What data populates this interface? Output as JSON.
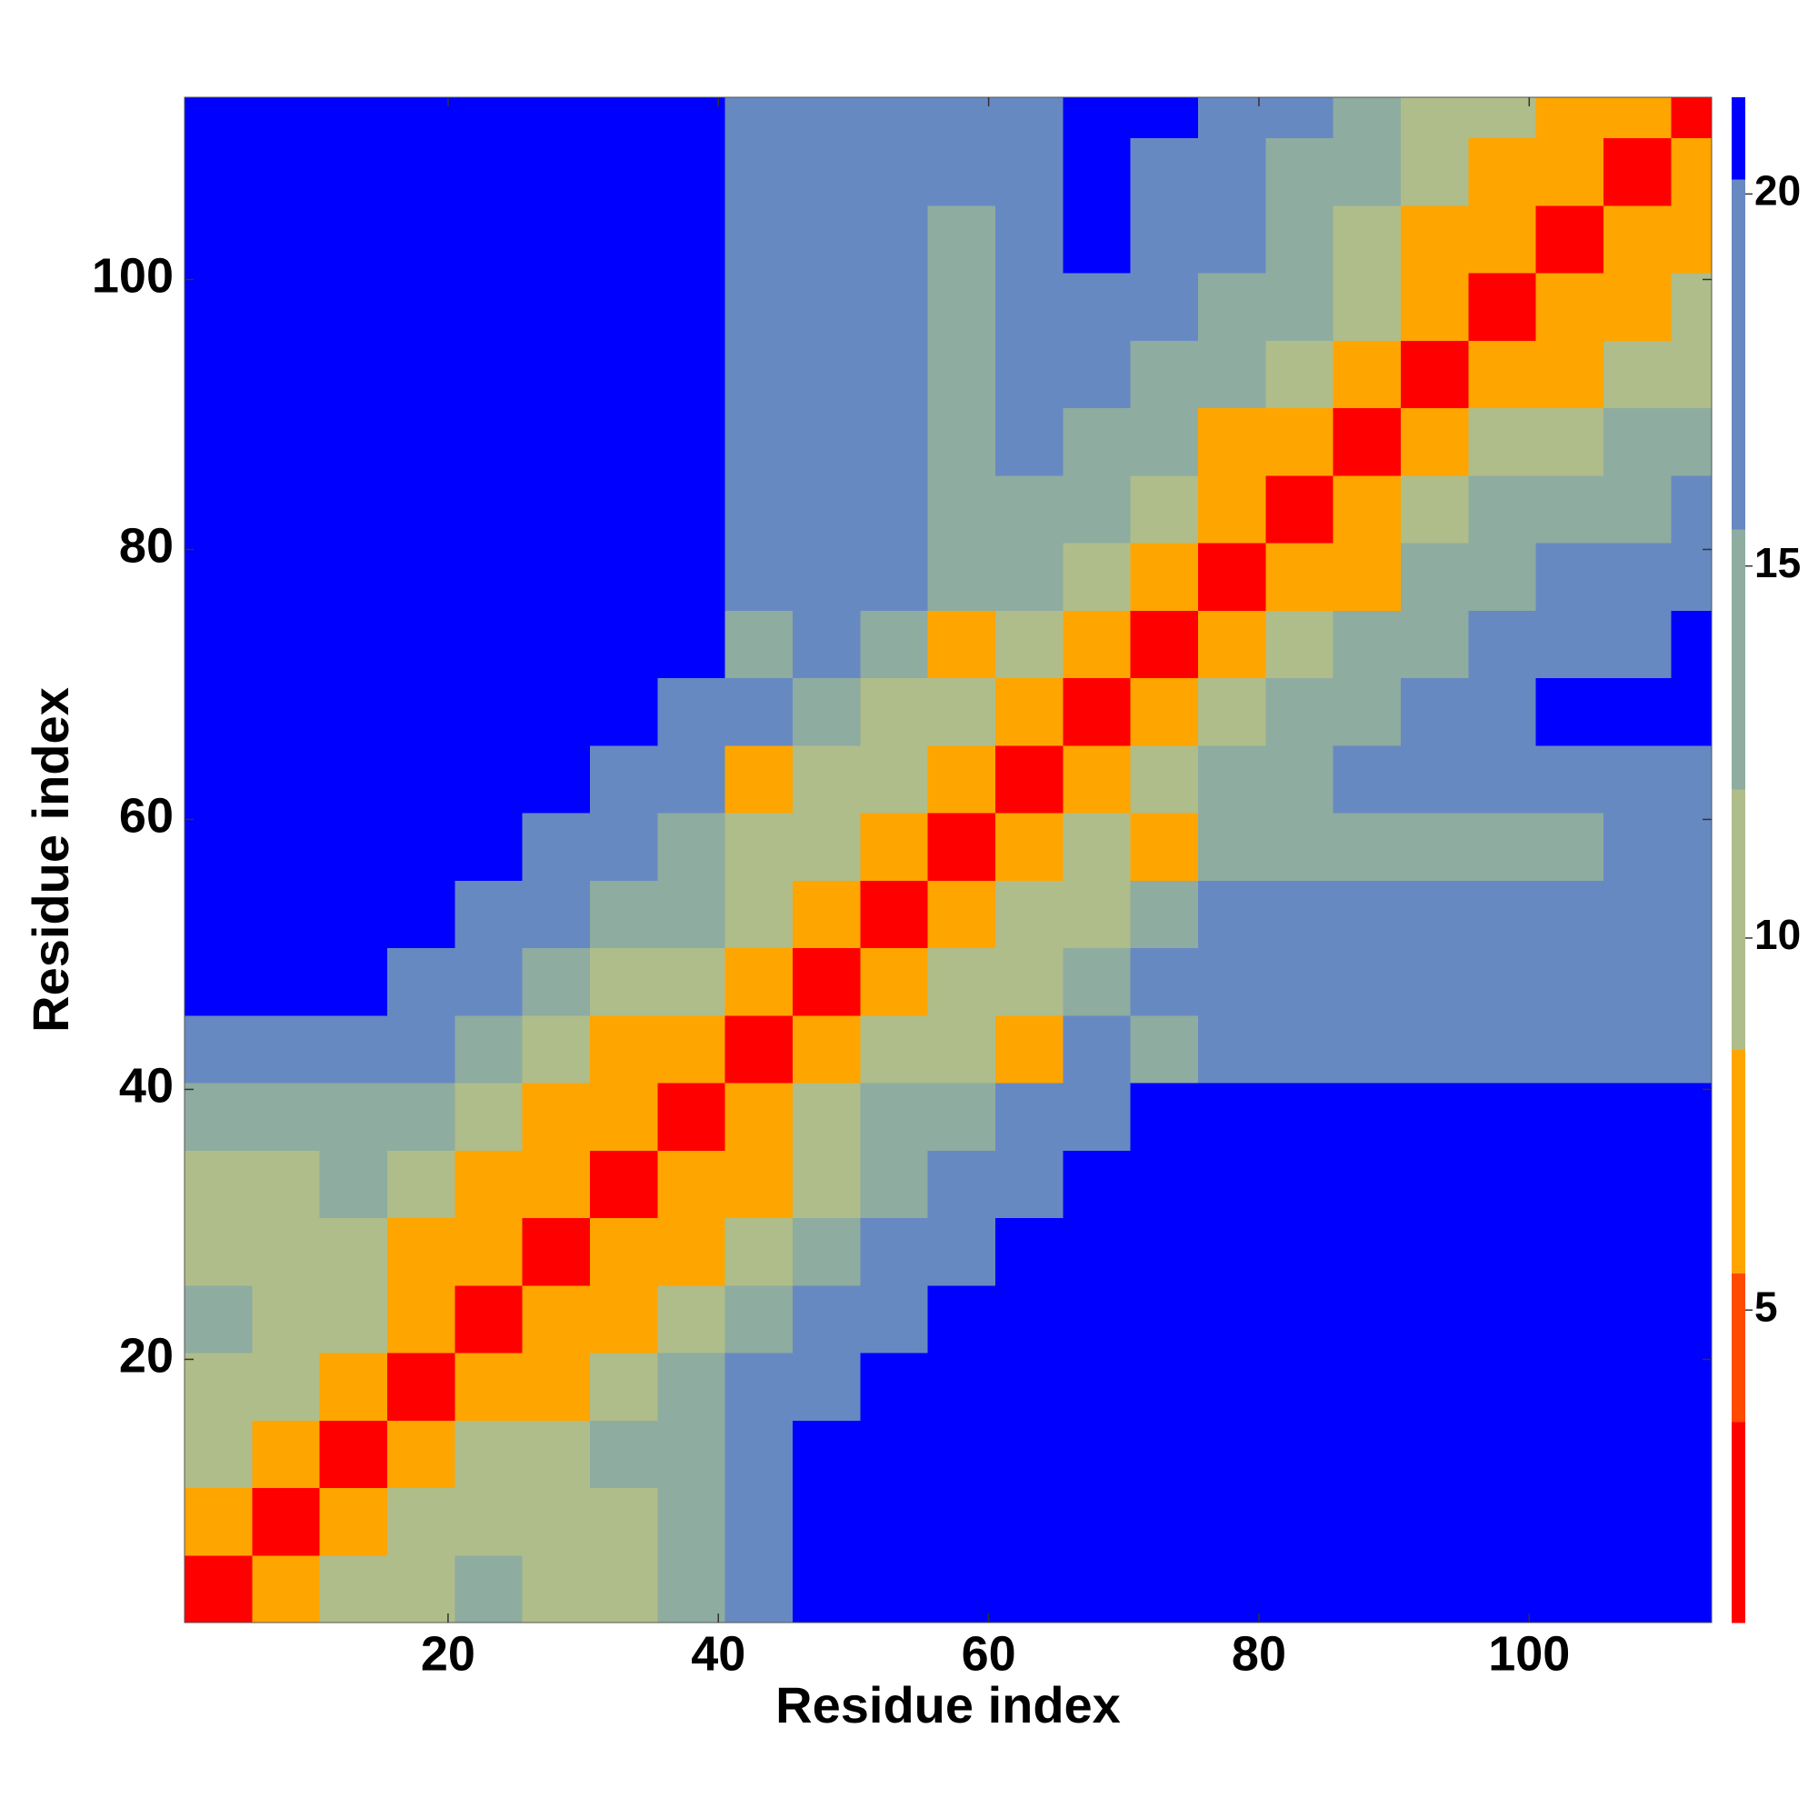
{
  "chart_data": {
    "type": "heatmap",
    "x_label": "Residue index",
    "y_label": "Residue index",
    "xbins": [
      0.5,
      5.5,
      10.5,
      15.5,
      20.5,
      25.5,
      30.5,
      35.5,
      40.5,
      45.5,
      50.5,
      55.5,
      60.5,
      65.5,
      70.5,
      75.5,
      80.5,
      85.5,
      90.5,
      95.5,
      100.5,
      105.5,
      110.5,
      113.5
    ],
    "ybins": [
      0.5,
      5.5,
      10.5,
      15.5,
      20.5,
      25.5,
      30.5,
      35.5,
      40.5,
      45.5,
      50.5,
      55.5,
      60.5,
      65.5,
      70.5,
      75.5,
      80.5,
      85.5,
      90.5,
      95.5,
      100.5,
      105.5,
      110.5,
      113.5
    ],
    "xlim": [
      0.5,
      113.5
    ],
    "ylim": [
      0.5,
      113.5
    ],
    "xticks": [
      20,
      40,
      60,
      80,
      100
    ],
    "yticks": [
      20,
      40,
      60,
      80,
      100
    ],
    "values": [
      [
        3,
        6,
        9,
        11,
        13,
        11,
        11,
        13,
        17,
        21,
        21,
        21,
        21,
        21,
        21,
        21,
        21,
        21,
        21,
        21,
        21,
        21,
        21
      ],
      [
        6,
        3,
        6,
        9,
        11,
        11,
        10,
        13,
        17,
        21,
        21,
        21,
        21,
        21,
        21,
        21,
        21,
        21,
        21,
        21,
        21,
        21,
        21
      ],
      [
        9,
        6,
        3,
        6,
        9,
        11,
        12,
        14,
        17,
        21,
        21,
        21,
        21,
        21,
        21,
        21,
        21,
        21,
        21,
        21,
        21,
        21,
        21
      ],
      [
        11,
        9,
        6,
        3,
        6,
        8,
        10,
        13,
        16,
        19,
        21,
        21,
        21,
        21,
        21,
        21,
        21,
        21,
        21,
        21,
        21,
        21,
        21
      ],
      [
        13,
        11,
        9,
        6,
        3,
        6,
        8,
        11,
        14,
        17,
        20,
        21,
        21,
        21,
        21,
        21,
        21,
        21,
        21,
        21,
        21,
        21,
        21
      ],
      [
        11,
        11,
        11,
        8,
        6,
        3,
        6,
        8,
        11,
        14,
        17,
        20,
        21,
        21,
        21,
        21,
        21,
        21,
        21,
        21,
        21,
        21,
        21
      ],
      [
        11,
        10,
        12,
        10,
        8,
        6,
        3,
        6,
        8,
        11,
        14,
        17,
        20,
        21,
        21,
        21,
        21,
        21,
        21,
        21,
        21,
        21,
        21
      ],
      [
        13,
        13,
        14,
        13,
        11,
        8,
        6,
        3,
        6,
        9,
        12,
        15,
        18,
        20,
        21,
        21,
        21,
        21,
        21,
        21,
        21,
        21,
        21
      ],
      [
        17,
        17,
        17,
        16,
        14,
        11,
        8,
        6,
        3,
        6,
        9,
        9,
        8,
        19,
        12,
        17,
        17,
        17,
        16,
        18,
        19,
        17,
        17
      ],
      [
        21,
        21,
        21,
        19,
        17,
        14,
        11,
        9,
        6,
        3,
        6,
        9,
        9,
        15,
        18,
        18,
        18,
        17,
        16,
        17,
        18,
        18,
        19
      ],
      [
        21,
        21,
        21,
        21,
        20,
        17,
        14,
        12,
        9,
        6,
        3,
        6,
        9,
        11,
        15,
        19,
        20,
        20,
        19,
        20,
        20,
        19,
        20
      ],
      [
        21,
        21,
        21,
        21,
        21,
        20,
        17,
        15,
        9,
        9,
        6,
        3,
        6,
        9,
        8,
        13,
        14,
        14,
        14,
        12,
        15,
        16,
        16
      ],
      [
        21,
        21,
        21,
        21,
        21,
        21,
        20,
        18,
        8,
        9,
        9,
        6,
        3,
        6,
        9,
        12,
        15,
        17,
        17,
        16,
        17,
        18,
        16
      ],
      [
        21,
        21,
        21,
        21,
        21,
        21,
        21,
        20,
        19,
        15,
        11,
        9,
        6,
        3,
        6,
        9,
        12,
        15,
        18,
        20,
        21,
        21,
        21
      ],
      [
        21,
        21,
        21,
        21,
        21,
        21,
        21,
        21,
        12,
        18,
        15,
        8,
        9,
        6,
        3,
        6,
        9,
        12,
        15,
        17,
        19,
        20,
        21
      ],
      [
        21,
        21,
        21,
        21,
        21,
        21,
        21,
        21,
        17,
        18,
        19,
        13,
        12,
        9,
        6,
        3,
        6,
        8,
        12,
        14,
        16,
        17,
        18
      ],
      [
        21,
        21,
        21,
        21,
        21,
        21,
        21,
        21,
        17,
        18,
        20,
        14,
        15,
        12,
        9,
        6,
        3,
        6,
        9,
        12,
        14,
        15,
        17
      ],
      [
        21,
        21,
        21,
        21,
        21,
        21,
        21,
        21,
        17,
        17,
        20,
        14,
        17,
        15,
        12,
        8,
        6,
        3,
        6,
        9,
        11,
        13,
        15
      ],
      [
        21,
        21,
        21,
        21,
        21,
        21,
        21,
        21,
        16,
        16,
        19,
        14,
        17,
        18,
        15,
        12,
        9,
        6,
        3,
        6,
        8,
        9,
        11
      ],
      [
        21,
        21,
        21,
        21,
        21,
        21,
        21,
        21,
        18,
        17,
        20,
        12,
        16,
        20,
        17,
        14,
        12,
        9,
        6,
        3,
        6,
        8,
        9
      ],
      [
        21,
        21,
        21,
        21,
        21,
        21,
        21,
        21,
        19,
        18,
        20,
        15,
        17,
        21,
        19,
        16,
        14,
        11,
        8,
        6,
        3,
        6,
        8
      ],
      [
        21,
        21,
        21,
        21,
        21,
        21,
        21,
        21,
        17,
        18,
        19,
        16,
        18,
        21,
        20,
        17,
        15,
        13,
        9,
        8,
        6,
        3,
        6
      ],
      [
        21,
        21,
        21,
        21,
        21,
        21,
        21,
        21,
        17,
        19,
        20,
        16,
        16,
        21,
        21,
        18,
        17,
        15,
        11,
        9,
        8,
        6,
        3
      ]
    ],
    "color_levels": [
      0.8,
      3.5,
      5.5,
      8.5,
      12,
      15.5,
      20.2,
      21.3
    ],
    "colors": [
      "#ff0000",
      "#ff4a00",
      "#ffa500",
      "#afbd8a",
      "#8eaca0",
      "#6789c2",
      "#0000ff"
    ],
    "zticks": [
      5,
      10,
      15,
      20
    ]
  }
}
